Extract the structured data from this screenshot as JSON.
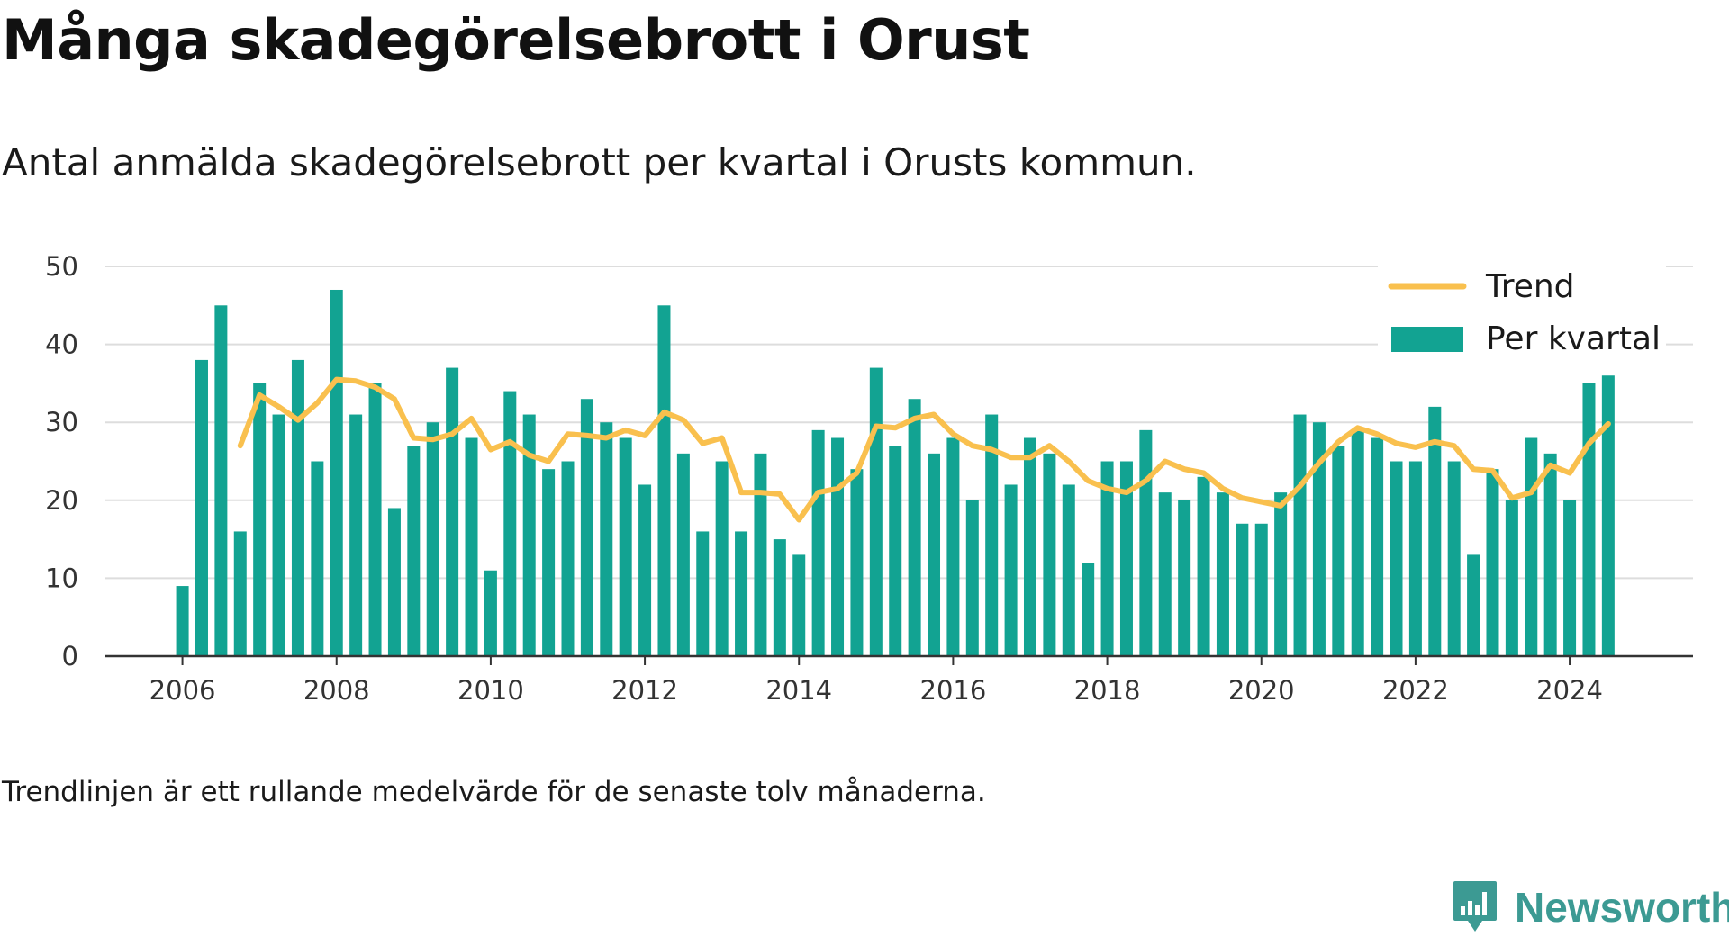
{
  "title": "Många skadegörelsebrott i Orust",
  "subtitle": "Antal anmälda skadegörelsebrott per kvartal i Orusts kommun.",
  "footnote": "Trendlinjen är ett rullande medelvärde för de senaste tolv månaderna.",
  "brand": {
    "name": "Newsworthy",
    "icon": "newsworthy-logo-icon"
  },
  "colors": {
    "bars": "#12a392",
    "trend": "#f9c04e",
    "grid": "#dddddd",
    "axis": "#333333"
  },
  "chart_data": {
    "type": "bar",
    "ylim": [
      0,
      50
    ],
    "yticks": [
      0,
      10,
      20,
      30,
      40,
      50
    ],
    "xlim": [
      2005,
      2025.6
    ],
    "xticks": [
      "2006",
      "2008",
      "2010",
      "2012",
      "2014",
      "2016",
      "2018",
      "2020",
      "2022",
      "2024"
    ],
    "grid": true,
    "legend_position": "top-right",
    "series": [
      {
        "name": "Per kvartal",
        "type": "bar",
        "x": [
          2006.0,
          2006.25,
          2006.5,
          2006.75,
          2007.0,
          2007.25,
          2007.5,
          2007.75,
          2008.0,
          2008.25,
          2008.5,
          2008.75,
          2009.0,
          2009.25,
          2009.5,
          2009.75,
          2010.0,
          2010.25,
          2010.5,
          2010.75,
          2011.0,
          2011.25,
          2011.5,
          2011.75,
          2012.0,
          2012.25,
          2012.5,
          2012.75,
          2013.0,
          2013.25,
          2013.5,
          2013.75,
          2014.0,
          2014.25,
          2014.5,
          2014.75,
          2015.0,
          2015.25,
          2015.5,
          2015.75,
          2016.0,
          2016.25,
          2016.5,
          2016.75,
          2017.0,
          2017.25,
          2017.5,
          2017.75,
          2018.0,
          2018.25,
          2018.5,
          2018.75,
          2019.0,
          2019.25,
          2019.5,
          2019.75,
          2020.0,
          2020.25,
          2020.5,
          2020.75,
          2021.0,
          2021.25,
          2021.5,
          2021.75,
          2022.0,
          2022.25,
          2022.5,
          2022.75,
          2023.0,
          2023.25,
          2023.5,
          2023.75,
          2024.0,
          2024.25,
          2024.5
        ],
        "values": [
          9,
          38,
          45,
          16,
          35,
          31,
          38,
          25,
          47,
          31,
          35,
          19,
          27,
          30,
          37,
          28,
          11,
          34,
          31,
          24,
          25,
          33,
          30,
          28,
          22,
          45,
          26,
          16,
          25,
          16,
          26,
          15,
          13,
          29,
          28,
          24,
          37,
          27,
          33,
          26,
          28,
          20,
          31,
          22,
          28,
          26,
          22,
          12,
          25,
          25,
          29,
          21,
          20,
          23,
          21,
          17,
          17,
          21,
          31,
          30,
          27,
          29,
          28,
          25,
          25,
          32,
          25,
          13,
          24,
          20,
          28,
          26,
          20,
          35,
          36
        ]
      },
      {
        "name": "Trend",
        "type": "line",
        "x": [
          2006.75,
          2007.0,
          2007.25,
          2007.5,
          2007.75,
          2008.0,
          2008.25,
          2008.5,
          2008.75,
          2009.0,
          2009.25,
          2009.5,
          2009.75,
          2010.0,
          2010.25,
          2010.5,
          2010.75,
          2011.0,
          2011.25,
          2011.5,
          2011.75,
          2012.0,
          2012.25,
          2012.5,
          2012.75,
          2013.0,
          2013.25,
          2013.5,
          2013.75,
          2014.0,
          2014.25,
          2014.5,
          2014.75,
          2015.0,
          2015.25,
          2015.5,
          2015.75,
          2016.0,
          2016.25,
          2016.5,
          2016.75,
          2017.0,
          2017.25,
          2017.5,
          2017.75,
          2018.0,
          2018.25,
          2018.5,
          2018.75,
          2019.0,
          2019.25,
          2019.5,
          2019.75,
          2020.0,
          2020.25,
          2020.5,
          2020.75,
          2021.0,
          2021.25,
          2021.5,
          2021.75,
          2022.0,
          2022.25,
          2022.5,
          2022.75,
          2023.0,
          2023.25,
          2023.5,
          2023.75,
          2024.0,
          2024.25,
          2024.5
        ],
        "values": [
          27,
          33.5,
          32,
          30.3,
          32.5,
          35.5,
          35.3,
          34.5,
          33,
          28,
          27.8,
          28.5,
          30.5,
          26.5,
          27.5,
          25.8,
          25,
          28.5,
          28.3,
          28,
          29,
          28.3,
          31.3,
          30.3,
          27.3,
          28,
          21,
          21,
          20.8,
          17.5,
          21,
          21.5,
          23.5,
          29.5,
          29.3,
          30.5,
          31,
          28.5,
          27,
          26.5,
          25.5,
          25.5,
          27,
          25,
          22.5,
          21.5,
          21,
          22.5,
          25,
          24,
          23.5,
          21.5,
          20.3,
          19.8,
          19.3,
          21.8,
          24.8,
          27.5,
          29.3,
          28.5,
          27.3,
          26.8,
          27.5,
          27,
          24,
          23.8,
          20.3,
          21,
          24.5,
          23.5,
          27.3,
          29.8
        ]
      }
    ]
  }
}
